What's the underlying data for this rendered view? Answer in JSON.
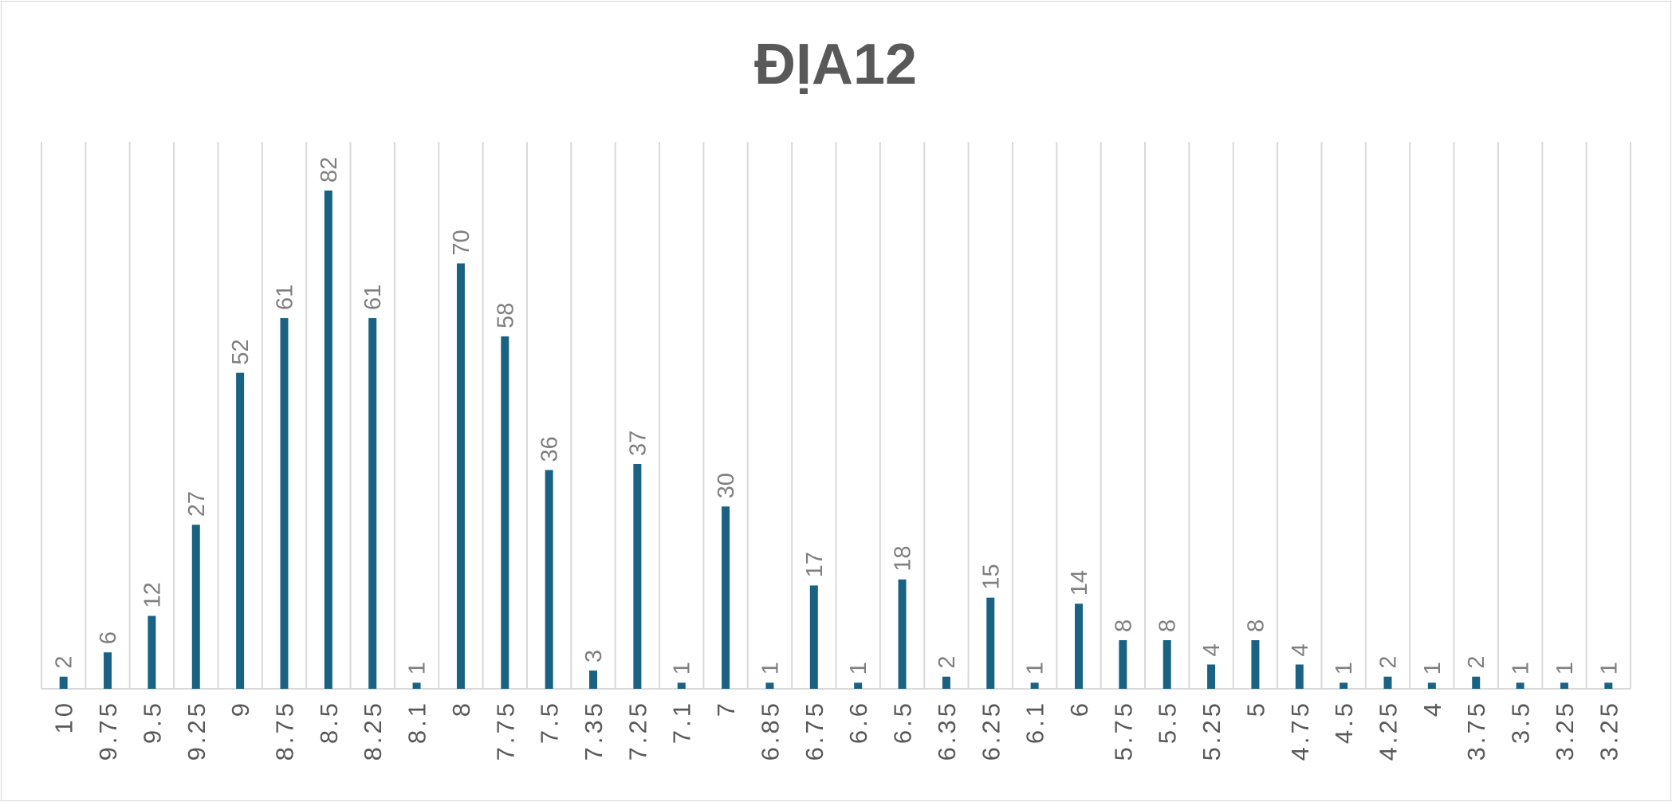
{
  "chart_data": {
    "type": "bar",
    "title": "ĐỊA12",
    "xlabel": "",
    "ylabel": "",
    "categories": [
      "10",
      "9.75",
      "9.5",
      "9.25",
      "9",
      "8.75",
      "8.5",
      "8.25",
      "8.1",
      "8",
      "7.75",
      "7.5",
      "7.35",
      "7.25",
      "7.1",
      "7",
      "6.85",
      "6.75",
      "6.6",
      "6.5",
      "6.35",
      "6.25",
      "6.1",
      "6",
      "5.75",
      "5.5",
      "5.25",
      "5",
      "4.75",
      "4.5",
      "4.25",
      "4",
      "3.75",
      "3.5",
      "3.25",
      "3.25"
    ],
    "values": [
      2,
      6,
      12,
      27,
      52,
      61,
      82,
      61,
      1,
      70,
      58,
      36,
      3,
      37,
      1,
      30,
      1,
      17,
      1,
      18,
      2,
      15,
      1,
      14,
      8,
      8,
      4,
      8,
      4,
      1,
      2,
      1,
      2,
      1,
      1,
      1
    ],
    "ylim": [
      0,
      90
    ],
    "grid": "vertical",
    "legend": "none",
    "bar_color": "#1a6283",
    "grid_color": "#d9d9d9",
    "axis_color": "#d9d9d9"
  }
}
